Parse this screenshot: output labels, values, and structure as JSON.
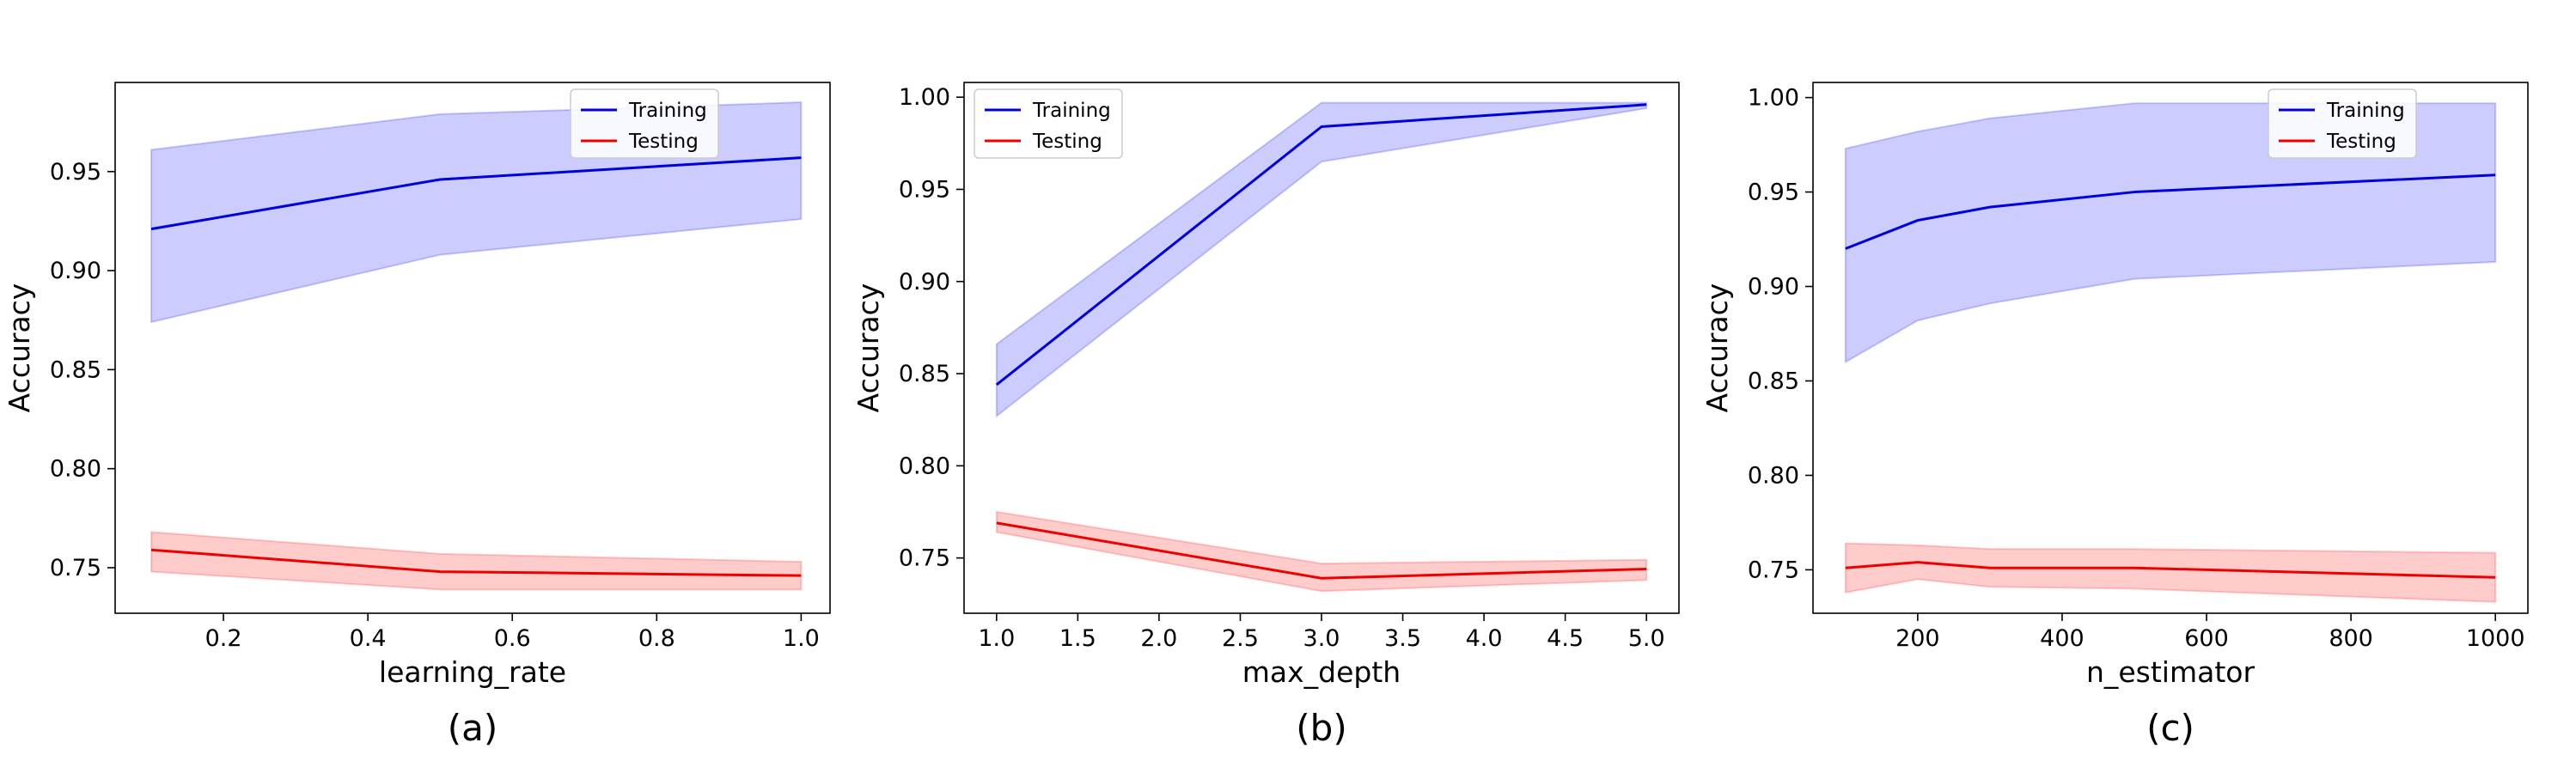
{
  "chart_data": [
    {
      "type": "line",
      "caption": "(a)",
      "xlabel": "learning_rate",
      "ylabel": "Accuracy",
      "xlim": [
        0.05,
        1.04
      ],
      "ylim": [
        0.727,
        0.995
      ],
      "xticks": [
        0.2,
        0.4,
        0.6,
        0.8,
        1.0
      ],
      "xtick_labels": [
        "0.2",
        "0.4",
        "0.6",
        "0.8",
        "1.0"
      ],
      "yticks": [
        0.75,
        0.8,
        0.85,
        0.9,
        0.95
      ],
      "ytick_labels": [
        "0.75",
        "0.80",
        "0.85",
        "0.90",
        "0.95"
      ],
      "legend_position": "upper right",
      "x": [
        0.1,
        0.5,
        1.0
      ],
      "series": [
        {
          "name": "Training",
          "color": "#0000dd",
          "band_color": "#0000ff",
          "values": [
            0.921,
            0.946,
            0.957
          ],
          "lower": [
            0.874,
            0.908,
            0.926
          ],
          "upper": [
            0.961,
            0.979,
            0.985
          ]
        },
        {
          "name": "Testing",
          "color": "#ee0000",
          "band_color": "#ff0000",
          "values": [
            0.759,
            0.748,
            0.746
          ],
          "lower": [
            0.748,
            0.739,
            0.739
          ],
          "upper": [
            0.768,
            0.757,
            0.753
          ]
        }
      ]
    },
    {
      "type": "line",
      "caption": "(b)",
      "xlabel": "max_depth",
      "ylabel": "Accuracy",
      "xlim": [
        0.8,
        5.2
      ],
      "ylim": [
        0.72,
        1.008
      ],
      "xticks": [
        1.0,
        1.5,
        2.0,
        2.5,
        3.0,
        3.5,
        4.0,
        4.5,
        5.0
      ],
      "xtick_labels": [
        "1.0",
        "1.5",
        "2.0",
        "2.5",
        "3.0",
        "3.5",
        "4.0",
        "4.5",
        "5.0"
      ],
      "yticks": [
        0.75,
        0.8,
        0.85,
        0.9,
        0.95,
        1.0
      ],
      "ytick_labels": [
        "0.75",
        "0.80",
        "0.85",
        "0.90",
        "0.95",
        "1.00"
      ],
      "legend_position": "upper left",
      "x": [
        1,
        3,
        5
      ],
      "series": [
        {
          "name": "Training",
          "color": "#0000dd",
          "band_color": "#0000ff",
          "values": [
            0.844,
            0.984,
            0.996
          ],
          "lower": [
            0.827,
            0.965,
            0.994
          ],
          "upper": [
            0.866,
            0.997,
            0.997
          ]
        },
        {
          "name": "Testing",
          "color": "#ee0000",
          "band_color": "#ff0000",
          "values": [
            0.769,
            0.739,
            0.744
          ],
          "lower": [
            0.764,
            0.732,
            0.738
          ],
          "upper": [
            0.775,
            0.747,
            0.749
          ]
        }
      ]
    },
    {
      "type": "line",
      "caption": "(c)",
      "xlabel": "n_estimator",
      "ylabel": "Accuracy",
      "xlim": [
        55,
        1045
      ],
      "ylim": [
        0.727,
        1.008
      ],
      "xticks": [
        200,
        400,
        600,
        800,
        1000
      ],
      "xtick_labels": [
        "200",
        "400",
        "600",
        "800",
        "1000"
      ],
      "yticks": [
        0.75,
        0.8,
        0.85,
        0.9,
        0.95,
        1.0
      ],
      "ytick_labels": [
        "0.75",
        "0.80",
        "0.85",
        "0.90",
        "0.95",
        "1.00"
      ],
      "legend_position": "upper right",
      "x": [
        100,
        200,
        300,
        500,
        1000
      ],
      "series": [
        {
          "name": "Training",
          "color": "#0000dd",
          "band_color": "#0000ff",
          "values": [
            0.92,
            0.935,
            0.942,
            0.95,
            0.959
          ],
          "lower": [
            0.86,
            0.882,
            0.891,
            0.904,
            0.913
          ],
          "upper": [
            0.973,
            0.982,
            0.989,
            0.997,
            0.997
          ]
        },
        {
          "name": "Testing",
          "color": "#ee0000",
          "band_color": "#ff0000",
          "values": [
            0.751,
            0.754,
            0.751,
            0.751,
            0.746
          ],
          "lower": [
            0.738,
            0.745,
            0.741,
            0.74,
            0.733
          ],
          "upper": [
            0.764,
            0.763,
            0.761,
            0.761,
            0.759
          ]
        }
      ]
    }
  ]
}
